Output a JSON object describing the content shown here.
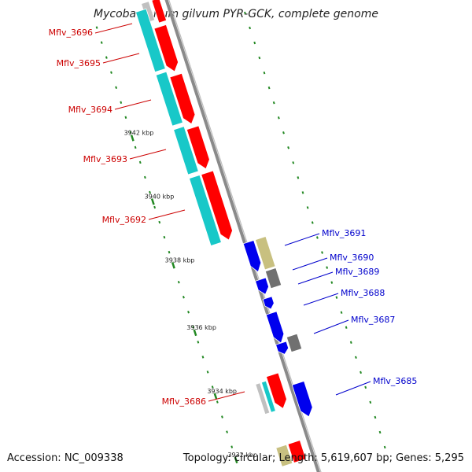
{
  "title": "Mycobacterium gilvum PYR-GCK, complete genome",
  "accession_text": "Accession: NC_009338",
  "topology_text": "Topology: circular; Length: 5,619,607 bp; Genes: 5,295",
  "colors": {
    "backbone": "#8a8a8a",
    "gene_red": "#ff0000",
    "gene_cyan": "#18c8c8",
    "gene_blue": "#0000ee",
    "gene_khaki": "#c8c080",
    "gene_gray": "#707070",
    "gene_light_gray": "#c0c0c0",
    "tick_green": "#228822",
    "label_red": "#cc0000",
    "label_blue": "#0000cc"
  },
  "ticks": [
    {
      "label": "3942 kbp"
    },
    {
      "label": "3940 kbp"
    },
    {
      "label": "3938 kbp"
    },
    {
      "label": "3936 kbp"
    },
    {
      "label": "3934 kbp"
    },
    {
      "label": "3932 kbp"
    }
  ],
  "gene_labels_left": [
    {
      "label": "Mflv_3696"
    },
    {
      "label": "Mflv_3695"
    },
    {
      "label": "Mflv_3694"
    },
    {
      "label": "Mflv_3693"
    },
    {
      "label": "Mflv_3692"
    },
    {
      "label": "Mflv_3686"
    }
  ],
  "gene_labels_right": [
    {
      "label": "Mflv_3691"
    },
    {
      "label": "Mflv_3690"
    },
    {
      "label": "Mflv_3689"
    },
    {
      "label": "Mflv_3688"
    },
    {
      "label": "Mflv_3687"
    },
    {
      "label": "Mflv_3685"
    }
  ]
}
